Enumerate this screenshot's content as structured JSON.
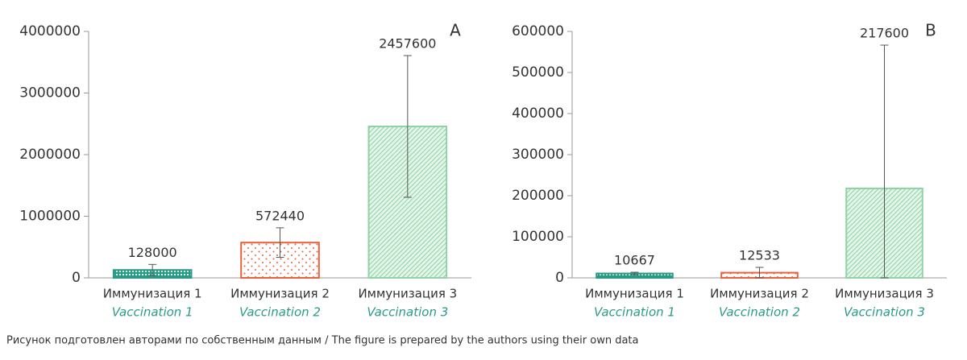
{
  "chart_data": [
    {
      "type": "bar",
      "annotation": "A",
      "categories": [
        "Иммунизация 1",
        "Иммунизация 2",
        "Иммунизация 3"
      ],
      "categories_en": [
        "Vaccination 1",
        "Vaccination 2",
        "Vaccination 3"
      ],
      "values": [
        128000,
        572440,
        2457600
      ],
      "errors": [
        90000,
        240000,
        1150000
      ],
      "colors": [
        "#2a9a87",
        "#e8603c",
        "#8fd3a5"
      ],
      "patterns": [
        "grid",
        "dots",
        "hatch"
      ],
      "ylim": [
        0,
        4000000
      ],
      "yticks": [
        0,
        1000000,
        2000000,
        3000000,
        4000000
      ]
    },
    {
      "type": "bar",
      "annotation": "B",
      "categories": [
        "Иммунизация 1",
        "Иммунизация 2",
        "Иммунизация 3"
      ],
      "categories_en": [
        "Vaccination 1",
        "Vaccination 2",
        "Vaccination 3"
      ],
      "values": [
        10667,
        12533,
        217600
      ],
      "errors": [
        3000,
        13000,
        349000
      ],
      "colors": [
        "#2a9a87",
        "#e8603c",
        "#8fd3a5"
      ],
      "patterns": [
        "grid",
        "dots",
        "hatch"
      ],
      "ylim": [
        0,
        600000
      ],
      "yticks": [
        0,
        100000,
        200000,
        300000,
        400000,
        500000,
        600000
      ]
    }
  ],
  "footnote": "Рисунок подготовлен авторами по собственным данным / The figure is prepared by the authors using their own data"
}
